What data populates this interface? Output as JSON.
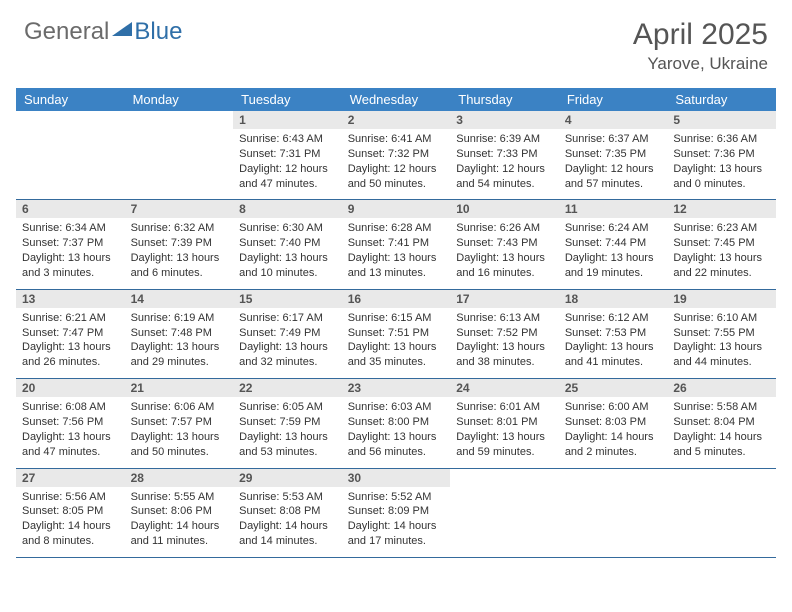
{
  "brand": {
    "part1": "General",
    "part2": "Blue"
  },
  "title": "April 2025",
  "location": "Yarove, Ukraine",
  "colors": {
    "header_bg": "#3b82c4",
    "header_text": "#ffffff",
    "daynum_bg": "#e9e9e9",
    "row_border": "#346a9c",
    "logo_gray": "#6b6b6b",
    "logo_blue": "#2f6fa8"
  },
  "weekdays": [
    "Sunday",
    "Monday",
    "Tuesday",
    "Wednesday",
    "Thursday",
    "Friday",
    "Saturday"
  ],
  "grid": [
    [
      null,
      null,
      {
        "n": "1",
        "sr": "6:43 AM",
        "ss": "7:31 PM",
        "dl": "12 hours and 47 minutes."
      },
      {
        "n": "2",
        "sr": "6:41 AM",
        "ss": "7:32 PM",
        "dl": "12 hours and 50 minutes."
      },
      {
        "n": "3",
        "sr": "6:39 AM",
        "ss": "7:33 PM",
        "dl": "12 hours and 54 minutes."
      },
      {
        "n": "4",
        "sr": "6:37 AM",
        "ss": "7:35 PM",
        "dl": "12 hours and 57 minutes."
      },
      {
        "n": "5",
        "sr": "6:36 AM",
        "ss": "7:36 PM",
        "dl": "13 hours and 0 minutes."
      }
    ],
    [
      {
        "n": "6",
        "sr": "6:34 AM",
        "ss": "7:37 PM",
        "dl": "13 hours and 3 minutes."
      },
      {
        "n": "7",
        "sr": "6:32 AM",
        "ss": "7:39 PM",
        "dl": "13 hours and 6 minutes."
      },
      {
        "n": "8",
        "sr": "6:30 AM",
        "ss": "7:40 PM",
        "dl": "13 hours and 10 minutes."
      },
      {
        "n": "9",
        "sr": "6:28 AM",
        "ss": "7:41 PM",
        "dl": "13 hours and 13 minutes."
      },
      {
        "n": "10",
        "sr": "6:26 AM",
        "ss": "7:43 PM",
        "dl": "13 hours and 16 minutes."
      },
      {
        "n": "11",
        "sr": "6:24 AM",
        "ss": "7:44 PM",
        "dl": "13 hours and 19 minutes."
      },
      {
        "n": "12",
        "sr": "6:23 AM",
        "ss": "7:45 PM",
        "dl": "13 hours and 22 minutes."
      }
    ],
    [
      {
        "n": "13",
        "sr": "6:21 AM",
        "ss": "7:47 PM",
        "dl": "13 hours and 26 minutes."
      },
      {
        "n": "14",
        "sr": "6:19 AM",
        "ss": "7:48 PM",
        "dl": "13 hours and 29 minutes."
      },
      {
        "n": "15",
        "sr": "6:17 AM",
        "ss": "7:49 PM",
        "dl": "13 hours and 32 minutes."
      },
      {
        "n": "16",
        "sr": "6:15 AM",
        "ss": "7:51 PM",
        "dl": "13 hours and 35 minutes."
      },
      {
        "n": "17",
        "sr": "6:13 AM",
        "ss": "7:52 PM",
        "dl": "13 hours and 38 minutes."
      },
      {
        "n": "18",
        "sr": "6:12 AM",
        "ss": "7:53 PM",
        "dl": "13 hours and 41 minutes."
      },
      {
        "n": "19",
        "sr": "6:10 AM",
        "ss": "7:55 PM",
        "dl": "13 hours and 44 minutes."
      }
    ],
    [
      {
        "n": "20",
        "sr": "6:08 AM",
        "ss": "7:56 PM",
        "dl": "13 hours and 47 minutes."
      },
      {
        "n": "21",
        "sr": "6:06 AM",
        "ss": "7:57 PM",
        "dl": "13 hours and 50 minutes."
      },
      {
        "n": "22",
        "sr": "6:05 AM",
        "ss": "7:59 PM",
        "dl": "13 hours and 53 minutes."
      },
      {
        "n": "23",
        "sr": "6:03 AM",
        "ss": "8:00 PM",
        "dl": "13 hours and 56 minutes."
      },
      {
        "n": "24",
        "sr": "6:01 AM",
        "ss": "8:01 PM",
        "dl": "13 hours and 59 minutes."
      },
      {
        "n": "25",
        "sr": "6:00 AM",
        "ss": "8:03 PM",
        "dl": "14 hours and 2 minutes."
      },
      {
        "n": "26",
        "sr": "5:58 AM",
        "ss": "8:04 PM",
        "dl": "14 hours and 5 minutes."
      }
    ],
    [
      {
        "n": "27",
        "sr": "5:56 AM",
        "ss": "8:05 PM",
        "dl": "14 hours and 8 minutes."
      },
      {
        "n": "28",
        "sr": "5:55 AM",
        "ss": "8:06 PM",
        "dl": "14 hours and 11 minutes."
      },
      {
        "n": "29",
        "sr": "5:53 AM",
        "ss": "8:08 PM",
        "dl": "14 hours and 14 minutes."
      },
      {
        "n": "30",
        "sr": "5:52 AM",
        "ss": "8:09 PM",
        "dl": "14 hours and 17 minutes."
      },
      null,
      null,
      null
    ]
  ],
  "labels": {
    "sunrise": "Sunrise:",
    "sunset": "Sunset:",
    "daylight": "Daylight:"
  }
}
